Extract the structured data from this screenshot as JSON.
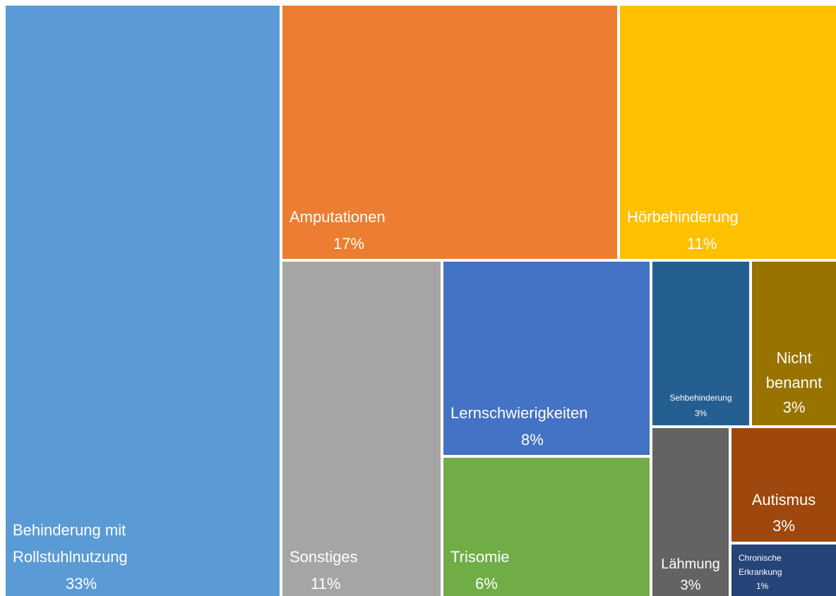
{
  "chart_data": {
    "type": "treemap",
    "categories": [
      "Behinderung mit Rollstuhlnutzung",
      "Amputationen",
      "Hörbehinderung",
      "Sonstiges",
      "Lernschwierigkeiten",
      "Trisomie",
      "Sehbehinderung",
      "Nicht benannt",
      "Lähmung",
      "Autismus",
      "Chronische Erkrankung"
    ],
    "values": [
      33,
      17,
      11,
      11,
      8,
      6,
      3,
      3,
      3,
      3,
      1
    ],
    "value_labels": [
      "33%",
      "17%",
      "11%",
      "11%",
      "8%",
      "6%",
      "3%",
      "3%",
      "3%",
      "3%",
      "1%"
    ],
    "colors": [
      "#5b9bd5",
      "#ed7d31",
      "#ffc000",
      "#a5a5a5",
      "#4472c4",
      "#70ad47",
      "#255e91",
      "#997300",
      "#636363",
      "#9e480e",
      "#264478"
    ]
  }
}
